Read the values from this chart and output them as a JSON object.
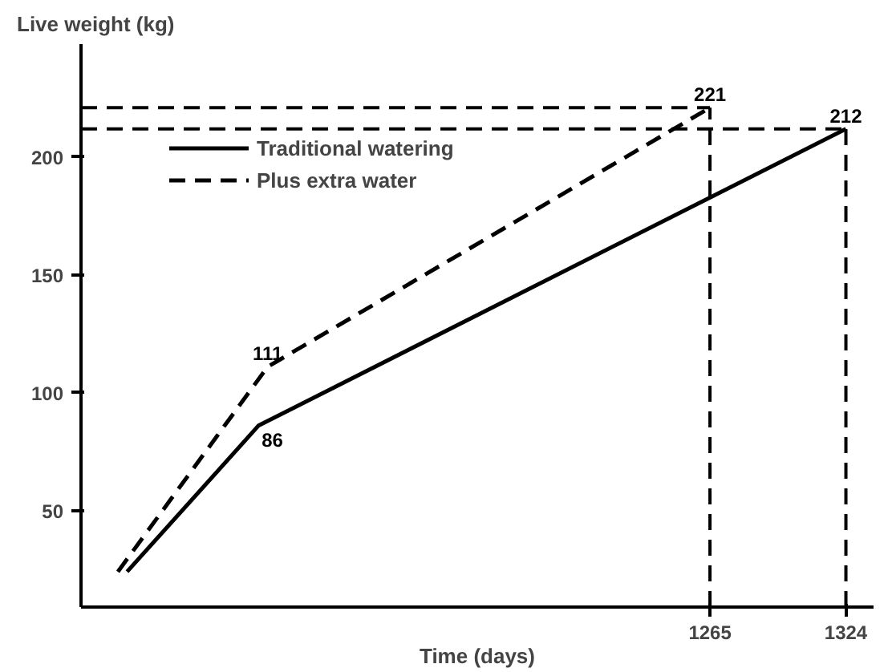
{
  "chart_data": {
    "type": "line",
    "xlabel": "Time (days)",
    "ylabel": "Live weight (kg)",
    "xlim": [
      992,
      1336
    ],
    "ylim": [
      9,
      248
    ],
    "xticks": [
      1265,
      1324
    ],
    "yticks": [
      50,
      100,
      150,
      200
    ],
    "series": [
      {
        "name": "Traditional watering",
        "color": "#000000",
        "line_style": "solid",
        "x": [
          1012,
          1069,
          1324
        ],
        "values": [
          24,
          86,
          212
        ],
        "value_labels": [
          null,
          "86",
          "212"
        ]
      },
      {
        "name": "Plus extra water",
        "color": "#000000",
        "line_style": "dashed",
        "x": [
          1008,
          1073,
          1265
        ],
        "values": [
          24,
          111,
          221
        ],
        "value_labels": [
          null,
          "111",
          "221"
        ]
      }
    ],
    "ref_lines": [
      {
        "axis": "x",
        "value": 1265,
        "line_style": "dashed"
      },
      {
        "axis": "x",
        "value": 1324,
        "line_style": "dashed"
      },
      {
        "axis": "y",
        "value": 221,
        "line_style": "dashed"
      },
      {
        "axis": "y",
        "value": 212,
        "line_style": "dashed"
      }
    ],
    "legend": "top left",
    "grid": false
  }
}
